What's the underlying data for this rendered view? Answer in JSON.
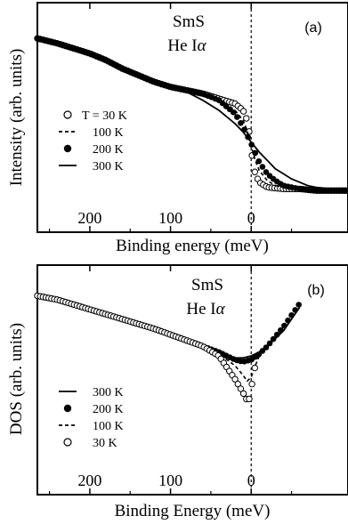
{
  "chart_data": [
    {
      "id": "a",
      "type": "line",
      "panel_label": "(a)",
      "title_line1": "SmS",
      "title_line2": "He I",
      "title_symbol": "α",
      "xlabel": "Binding energy (meV)",
      "ylabel": "Intensity (arb. units)",
      "x_reversed": true,
      "xlim": [
        265,
        -120
      ],
      "ylim": [
        0,
        1
      ],
      "xticks": [
        200,
        100,
        0
      ],
      "xtick_labels": [
        "200",
        "100",
        "0"
      ],
      "fermi_line_x": 0,
      "legend_position": "middle-left",
      "series": [
        {
          "name": "T = 30 K",
          "style": "open-circle",
          "x": [
            265,
            240,
            220,
            200,
            180,
            160,
            140,
            120,
            100,
            80,
            60,
            40,
            20,
            10,
            5,
            2,
            0,
            -2,
            -5,
            -10,
            -20,
            -40,
            -60,
            -80,
            -100,
            -120
          ],
          "y": [
            0.93,
            0.9,
            0.87,
            0.84,
            0.8,
            0.75,
            0.71,
            0.67,
            0.64,
            0.62,
            0.6,
            0.57,
            0.54,
            0.5,
            0.44,
            0.36,
            0.27,
            0.19,
            0.12,
            0.07,
            0.04,
            0.03,
            0.03,
            0.02,
            0.02,
            0.02
          ]
        },
        {
          "name": "100 K",
          "style": "dashed",
          "x": [
            265,
            240,
            220,
            200,
            180,
            160,
            140,
            120,
            100,
            80,
            60,
            40,
            20,
            10,
            5,
            0,
            -5,
            -10,
            -20,
            -30,
            -40,
            -60,
            -80,
            -100,
            -120
          ],
          "y": [
            0.93,
            0.9,
            0.87,
            0.84,
            0.8,
            0.75,
            0.71,
            0.67,
            0.64,
            0.62,
            0.6,
            0.57,
            0.5,
            0.44,
            0.38,
            0.29,
            0.2,
            0.14,
            0.08,
            0.05,
            0.04,
            0.03,
            0.03,
            0.02,
            0.02
          ]
        },
        {
          "name": "200 K",
          "style": "filled-circle",
          "x": [
            265,
            240,
            220,
            200,
            180,
            160,
            140,
            120,
            100,
            80,
            60,
            40,
            20,
            10,
            0,
            -10,
            -20,
            -30,
            -40,
            -50,
            -60,
            -80,
            -100,
            -120
          ],
          "y": [
            0.93,
            0.9,
            0.87,
            0.84,
            0.8,
            0.75,
            0.71,
            0.67,
            0.64,
            0.62,
            0.6,
            0.56,
            0.48,
            0.4,
            0.3,
            0.19,
            0.12,
            0.08,
            0.05,
            0.04,
            0.03,
            0.02,
            0.02,
            0.02
          ]
        },
        {
          "name": "300 K",
          "style": "solid",
          "x": [
            265,
            240,
            220,
            200,
            180,
            160,
            140,
            120,
            100,
            80,
            60,
            40,
            20,
            10,
            0,
            -10,
            -20,
            -30,
            -40,
            -50,
            -60,
            -70,
            -80,
            -100,
            -120
          ],
          "y": [
            0.93,
            0.9,
            0.87,
            0.84,
            0.8,
            0.75,
            0.71,
            0.67,
            0.64,
            0.61,
            0.56,
            0.5,
            0.42,
            0.37,
            0.31,
            0.25,
            0.2,
            0.15,
            0.12,
            0.09,
            0.07,
            0.05,
            0.04,
            0.03,
            0.02
          ]
        }
      ]
    },
    {
      "id": "b",
      "type": "line",
      "panel_label": "(b)",
      "title_line1": "SmS",
      "title_line2": "He I",
      "title_symbol": "α",
      "xlabel": "Binding Energy (meV)",
      "ylabel": "DOS (arb. units)",
      "x_reversed": true,
      "xlim": [
        265,
        -120
      ],
      "ylim": [
        0,
        1
      ],
      "xticks": [
        200,
        100,
        0
      ],
      "xtick_labels": [
        "200",
        "100",
        "0"
      ],
      "fermi_line_x": 0,
      "legend_position": "bottom-left",
      "series": [
        {
          "name": "300 K",
          "style": "solid",
          "x": [
            265,
            240,
            200,
            160,
            120,
            100,
            80,
            60,
            40,
            20,
            10,
            0,
            -10,
            -20,
            -30,
            -40,
            -50,
            -60
          ],
          "y": [
            0.86,
            0.84,
            0.79,
            0.74,
            0.69,
            0.66,
            0.63,
            0.6,
            0.57,
            0.54,
            0.54,
            0.55,
            0.57,
            0.6,
            0.64,
            0.68,
            0.74,
            0.8
          ]
        },
        {
          "name": "200 K",
          "style": "filled-circle",
          "x": [
            265,
            240,
            200,
            160,
            120,
            100,
            80,
            60,
            40,
            20,
            10,
            0,
            -10,
            -20,
            -30,
            -40,
            -50,
            -60
          ],
          "y": [
            0.86,
            0.84,
            0.79,
            0.74,
            0.69,
            0.66,
            0.63,
            0.6,
            0.57,
            0.53,
            0.52,
            0.53,
            0.56,
            0.6,
            0.65,
            0.7,
            0.76,
            0.82
          ]
        },
        {
          "name": "100 K",
          "style": "dashed",
          "x": [
            265,
            240,
            200,
            160,
            120,
            100,
            80,
            60,
            40,
            20,
            10,
            5,
            0,
            -5,
            -10,
            -20
          ],
          "y": [
            0.86,
            0.84,
            0.79,
            0.74,
            0.69,
            0.66,
            0.63,
            0.6,
            0.56,
            0.5,
            0.45,
            0.42,
            0.44,
            0.5,
            0.55,
            0.6
          ]
        },
        {
          "name": "30 K",
          "style": "open-circle",
          "x": [
            265,
            240,
            200,
            160,
            120,
            100,
            80,
            60,
            40,
            30,
            20,
            10,
            5,
            2,
            0,
            -2,
            -5
          ],
          "y": [
            0.86,
            0.84,
            0.79,
            0.74,
            0.69,
            0.66,
            0.63,
            0.6,
            0.55,
            0.49,
            0.43,
            0.36,
            0.32,
            0.33,
            0.38,
            0.43,
            0.5
          ]
        }
      ]
    }
  ]
}
